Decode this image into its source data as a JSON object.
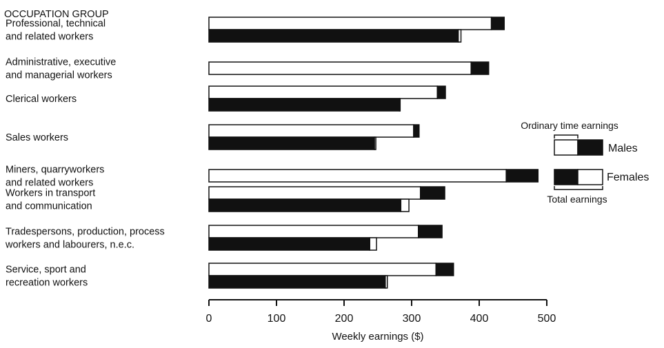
{
  "chart_data": {
    "type": "bar",
    "orientation": "horizontal",
    "category_header": "OCCUPATION GROUP",
    "categories": [
      [
        "Professional, technical",
        "and related workers"
      ],
      [
        "Administrative, executive",
        "and managerial workers"
      ],
      [
        "Clerical workers"
      ],
      [
        "Sales workers"
      ],
      [
        "Miners, quarryworkers",
        "and related workers"
      ],
      [
        "Workers in transport",
        "and communication"
      ],
      [
        "Tradespersons, production, process",
        "workers and labourers, n.e.c."
      ],
      [
        "Service, sport and",
        "recreation workers"
      ]
    ],
    "series": [
      {
        "name": "Males",
        "ordinary_time": [
          418,
          388,
          338,
          303,
          440,
          313,
          310,
          336
        ],
        "total": [
          437,
          414,
          350,
          311,
          487,
          349,
          345,
          362
        ]
      },
      {
        "name": "Females",
        "ordinary_time": [
          369,
          null,
          282,
          245,
          null,
          284,
          238,
          261
        ],
        "total": [
          373,
          null,
          283,
          247,
          null,
          296,
          248,
          264
        ]
      }
    ],
    "xlabel": "Weekly earnings ($)",
    "xlim": [
      0,
      500
    ],
    "xticks": [
      0,
      100,
      200,
      300,
      400,
      500
    ],
    "grid": false,
    "legend": {
      "title": "Ordinary time earnings",
      "footer": "Total earnings",
      "entries": [
        "Males",
        "Females"
      ],
      "position": "right"
    }
  }
}
